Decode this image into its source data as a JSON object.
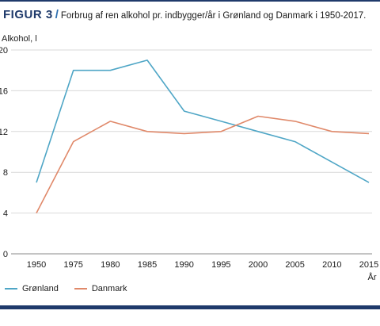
{
  "header": {
    "figure_label": "FIGUR 3",
    "separator": "/",
    "title": "Forbrug af ren alkohol pr. indbygger/år i Grønland og Danmark i 1950-2017."
  },
  "colors": {
    "accent": "#1f3a6b",
    "groenland": "#4fa6c6",
    "danmark": "#e0896a"
  },
  "chart_data": {
    "type": "line",
    "title": "",
    "ylabel": "Alkohol, l",
    "xlabel": "År",
    "ylim": [
      0,
      20
    ],
    "yticks": [
      "0",
      "4",
      "8",
      "12",
      "16",
      "20"
    ],
    "x": [
      "1950",
      "1975",
      "1980",
      "1985",
      "1990",
      "1995",
      "2000",
      "2005",
      "2010",
      "2015"
    ],
    "series": [
      {
        "name": "Grønland",
        "values": [
          7.0,
          18.0,
          18.0,
          19.0,
          14.0,
          13.0,
          12.0,
          11.0,
          9.0,
          7.0
        ]
      },
      {
        "name": "Danmark",
        "values": [
          4.0,
          11.0,
          13.0,
          12.0,
          11.8,
          12.0,
          13.5,
          13.0,
          12.0,
          11.8
        ]
      }
    ],
    "grid": "horizontal",
    "legend_position": "bottom-left"
  }
}
